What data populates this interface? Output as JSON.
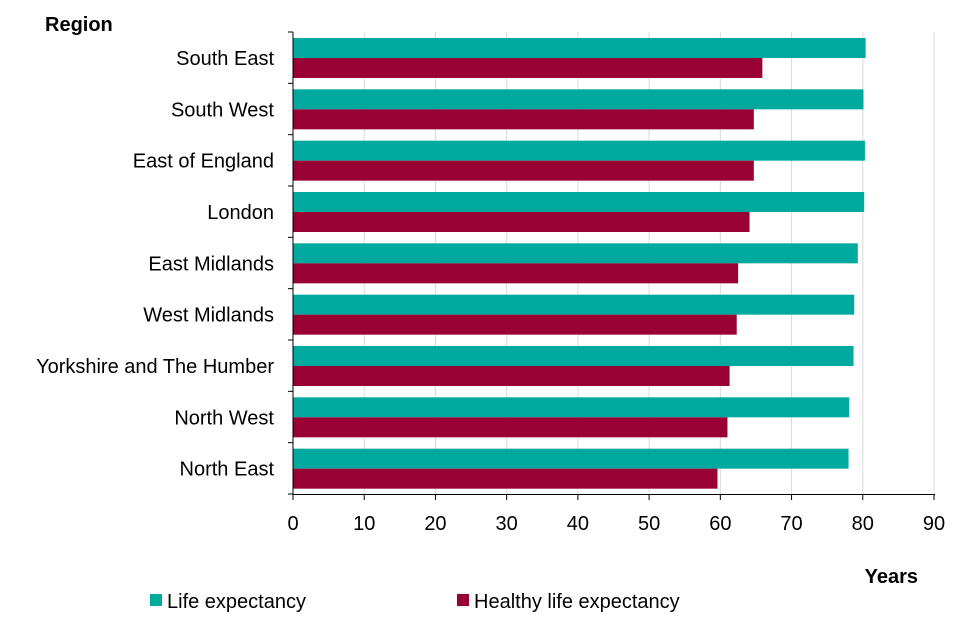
{
  "chart_data": {
    "type": "bar",
    "orientation": "horizontal",
    "ylabel": "Region",
    "xlabel": "Years",
    "categories": [
      "South East",
      "South West",
      "East of England",
      "London",
      "East Midlands",
      "West Midlands",
      "Yorkshire and The Humber",
      "North West",
      "North East"
    ],
    "series": [
      {
        "name": "Life expectancy",
        "color": "#00A99D",
        "values": [
          80.4,
          80.1,
          80.3,
          80.2,
          79.3,
          78.8,
          78.7,
          78.1,
          78.0
        ]
      },
      {
        "name": "Healthy life expectancy",
        "color": "#990033",
        "values": [
          65.9,
          64.7,
          64.7,
          64.1,
          62.5,
          62.3,
          61.3,
          61.0,
          59.6
        ]
      }
    ],
    "xlim": [
      0,
      90
    ],
    "xticks": [
      0,
      10,
      20,
      30,
      40,
      50,
      60,
      70,
      80,
      90
    ],
    "grid": true,
    "legend_position": "bottom"
  }
}
